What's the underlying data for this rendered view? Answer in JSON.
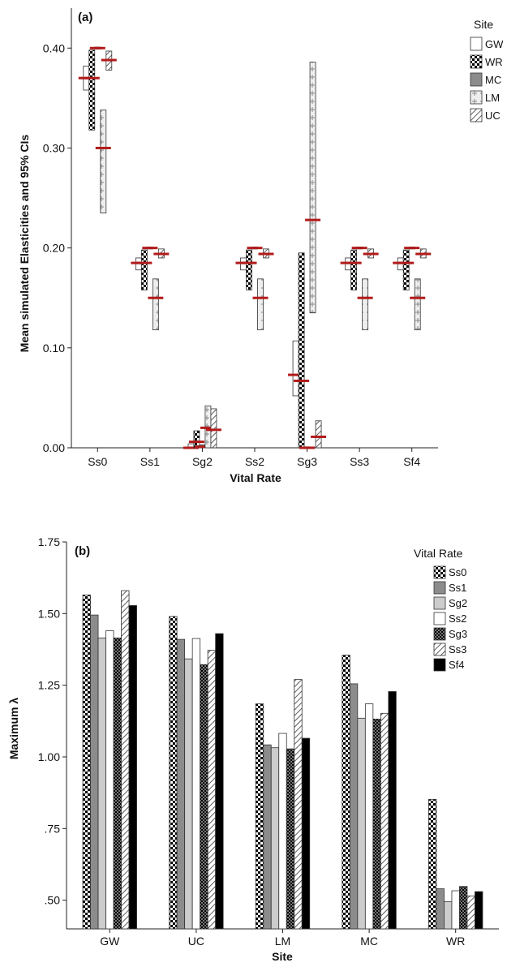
{
  "colors": {
    "mean_marker": "#b31b1b",
    "axis": "#222222",
    "mc_fill": "#8c8c8c",
    "ss1_fill": "#8c8c8c",
    "sg2_fill": "#cccccc",
    "sf4_fill": "#000000"
  },
  "chart_data": [
    {
      "type": "error-bar",
      "panel_label": "(a)",
      "xlabel": "Vital Rate",
      "ylabel": "Mean simulated Elasticities and 95% CIs",
      "ylim": [
        0,
        0.44
      ],
      "yticks": [
        "0.00",
        "0.10",
        "0.20",
        "0.30",
        "0.40"
      ],
      "ytick_values": [
        0,
        0.1,
        0.2,
        0.3,
        0.4
      ],
      "categories": [
        "Ss0",
        "Ss1",
        "Sg2",
        "Ss2",
        "Sg3",
        "Ss3",
        "Sf4"
      ],
      "legend": {
        "title": "Site",
        "position": "top-right"
      },
      "series": [
        {
          "name": "GW",
          "pattern": "white",
          "lower": [
            0.358,
            0.178,
            0.0,
            0.178,
            0.052,
            0.178,
            0.178
          ],
          "upper": [
            0.382,
            0.19,
            0.004,
            0.19,
            0.107,
            0.19,
            0.19
          ],
          "mean": [
            0.37,
            0.185,
            0.0,
            0.185,
            0.073,
            0.185,
            0.185
          ]
        },
        {
          "name": "WR",
          "pattern": "checker",
          "lower": [
            0.318,
            0.158,
            0.0,
            0.158,
            0.0,
            0.158,
            0.158
          ],
          "upper": [
            0.398,
            0.198,
            0.017,
            0.198,
            0.195,
            0.198,
            0.198
          ],
          "mean": [
            0.37,
            0.185,
            0.006,
            0.185,
            0.067,
            0.185,
            0.185
          ]
        },
        {
          "name": "MC",
          "pattern": "gray",
          "lower": [
            0.399,
            0.199,
            0.0,
            0.199,
            0.0,
            0.199,
            0.199
          ],
          "upper": [
            0.401,
            0.201,
            0.003,
            0.201,
            0.001,
            0.201,
            0.201
          ],
          "mean": [
            0.4,
            0.2,
            0.001,
            0.2,
            0.0,
            0.2,
            0.2
          ]
        },
        {
          "name": "LM",
          "pattern": "plus",
          "lower": [
            0.235,
            0.118,
            0.0,
            0.118,
            0.135,
            0.118,
            0.118
          ],
          "upper": [
            0.338,
            0.169,
            0.042,
            0.169,
            0.386,
            0.169,
            0.169
          ],
          "mean": [
            0.3,
            0.15,
            0.02,
            0.15,
            0.228,
            0.15,
            0.15
          ]
        },
        {
          "name": "UC",
          "pattern": "hatch",
          "lower": [
            0.378,
            0.19,
            0.0,
            0.19,
            0.0,
            0.19,
            0.19
          ],
          "upper": [
            0.397,
            0.199,
            0.039,
            0.199,
            0.027,
            0.199,
            0.199
          ],
          "mean": [
            0.388,
            0.194,
            0.018,
            0.194,
            0.011,
            0.194,
            0.194
          ]
        }
      ]
    },
    {
      "type": "bar",
      "panel_label": "(b)",
      "xlabel": "Site",
      "ylabel": "Maximum λ",
      "ylim": [
        0.4,
        1.75
      ],
      "yticks": [
        ".50",
        ".75",
        "1.00",
        "1.25",
        "1.50",
        "1.75"
      ],
      "ytick_values": [
        0.5,
        0.75,
        1.0,
        1.25,
        1.5,
        1.75
      ],
      "categories": [
        "GW",
        "UC",
        "LM",
        "MC",
        "WR"
      ],
      "legend": {
        "title": "Vital Rate",
        "position": "top-right"
      },
      "series": [
        {
          "name": "Ss0",
          "pattern": "checker",
          "values": [
            1.565,
            1.49,
            1.185,
            1.355,
            0.852
          ]
        },
        {
          "name": "Ss1",
          "pattern": "darkgray",
          "values": [
            1.495,
            1.41,
            1.042,
            1.255,
            0.54
          ]
        },
        {
          "name": "Sg2",
          "pattern": "lightgray",
          "values": [
            1.415,
            1.342,
            1.032,
            1.135,
            0.495
          ]
        },
        {
          "name": "Ss2",
          "pattern": "white",
          "values": [
            1.44,
            1.413,
            1.082,
            1.185,
            0.533
          ]
        },
        {
          "name": "Sg3",
          "pattern": "darkchecker",
          "values": [
            1.415,
            1.322,
            1.028,
            1.132,
            0.548
          ]
        },
        {
          "name": "Ss3",
          "pattern": "hatch",
          "values": [
            1.58,
            1.372,
            1.27,
            1.152,
            0.515
          ]
        },
        {
          "name": "Sf4",
          "pattern": "black",
          "values": [
            1.528,
            1.43,
            1.065,
            1.228,
            0.53
          ]
        }
      ]
    }
  ]
}
